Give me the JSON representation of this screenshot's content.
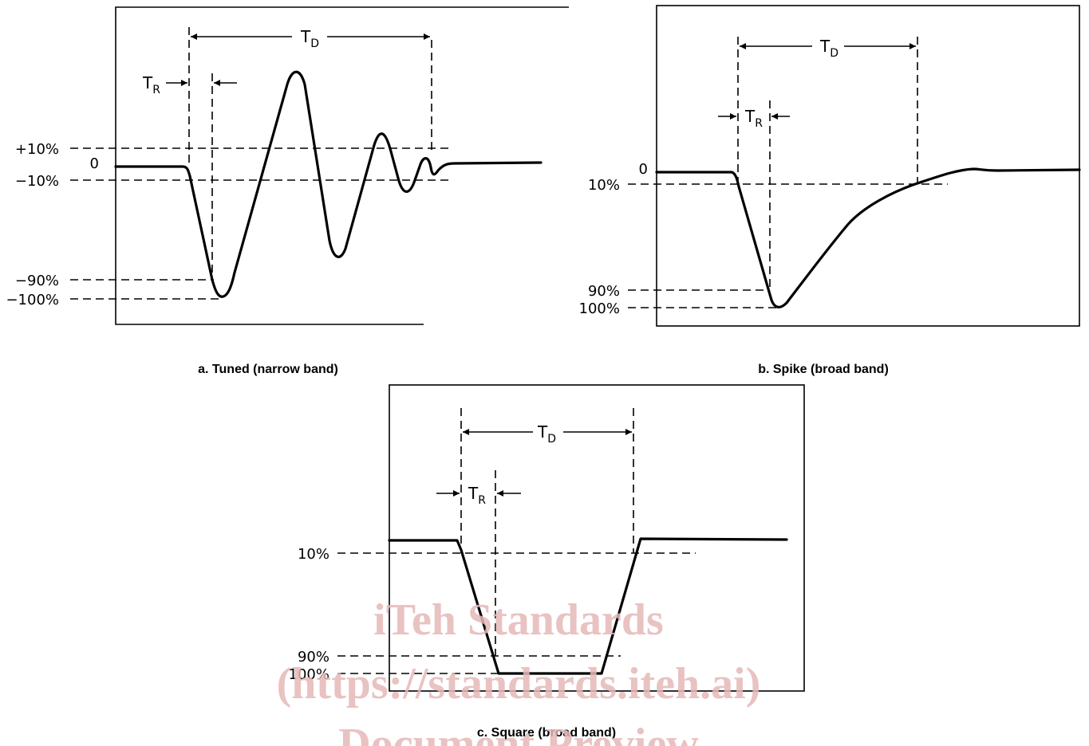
{
  "panels": {
    "a": {
      "caption": "a. Tuned (narrow band)",
      "levels": {
        "plus10": "+10%",
        "zero": "0",
        "minus10": "−10%",
        "minus90": "−90%",
        "minus100": "−100%"
      },
      "td": {
        "main": "T",
        "sub": "D"
      },
      "tr": {
        "main": "T",
        "sub": "R"
      }
    },
    "b": {
      "caption": "b. Spike (broad band)",
      "levels": {
        "zero": "0",
        "p10": "10%",
        "p90": "90%",
        "p100": "100%"
      },
      "td": {
        "main": "T",
        "sub": "D"
      },
      "tr": {
        "main": "T",
        "sub": "R"
      }
    },
    "c": {
      "caption": "c. Square (broad band)",
      "levels": {
        "p10": "10%",
        "p90": "90%",
        "p100": "100%"
      },
      "td": {
        "main": "T",
        "sub": "D"
      },
      "tr": {
        "main": "T",
        "sub": "R"
      }
    }
  },
  "watermark": {
    "line1": "iTeh Standards",
    "line2": "(https://standards.iteh.ai)",
    "line3": "Document Preview"
  }
}
